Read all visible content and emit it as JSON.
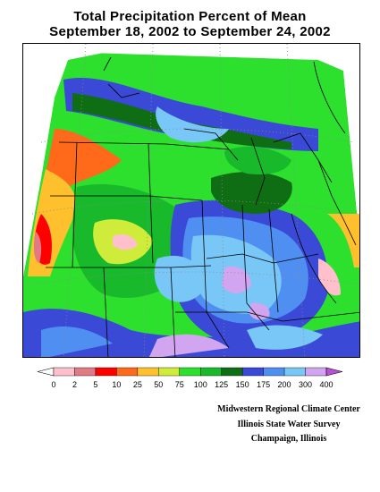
{
  "title": {
    "line1": "Total Precipitation Percent of Mean",
    "line2": "September 18, 2002 to September 24, 2002"
  },
  "legend": {
    "labels": [
      "0",
      "2",
      "5",
      "10",
      "25",
      "50",
      "75",
      "100",
      "125",
      "150",
      "175",
      "200",
      "300",
      "400"
    ],
    "colors": [
      "#ffffff",
      "#ffc0cb",
      "#e07a84",
      "#ff0000",
      "#ff6a1a",
      "#ffc02e",
      "#cfec3a",
      "#2ee02e",
      "#19b92c",
      "#0f6e14",
      "#3a49d6",
      "#4f8ff2",
      "#79c7f6",
      "#d2a5f0",
      "#b94fd2"
    ]
  },
  "map": {
    "variable": "percent-of-mean-precipitation",
    "region": "midwest-united-states"
  },
  "credits": {
    "line1": "Midwestern Regional Climate Center",
    "line2": "Illinois State Water Survey",
    "line3": "Champaign, Illinois"
  }
}
